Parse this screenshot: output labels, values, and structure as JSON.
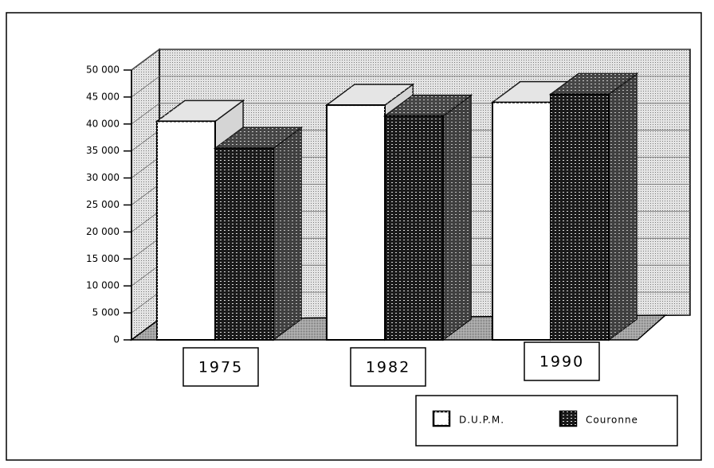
{
  "chart_data": {
    "type": "bar3d",
    "categories": [
      "1975",
      "1982",
      "1990"
    ],
    "series": [
      {
        "name": "D.U.P.M.",
        "color": "#ffffff",
        "values": [
          40500,
          43500,
          44000
        ]
      },
      {
        "name": "Couronne",
        "color": "#1a1a1a",
        "values": [
          35500,
          41500,
          45500
        ]
      }
    ],
    "ylim": [
      0,
      50000
    ],
    "yticks": [
      0,
      {
        "value": 5000,
        "label": "5 000"
      },
      {
        "value": 10000,
        "label": "10 000"
      },
      {
        "value": 15000,
        "label": "15 000"
      },
      {
        "value": 20000,
        "label": "20 000"
      },
      {
        "value": 25000,
        "label": "25 000"
      },
      {
        "value": 30000,
        "label": "30 000"
      },
      {
        "value": 35000,
        "label": "35 000"
      },
      {
        "value": 40000,
        "label": "40 000"
      },
      {
        "value": 45000,
        "label": "45 000"
      },
      {
        "value": 50000,
        "label": "50 000"
      }
    ],
    "grid": true
  }
}
